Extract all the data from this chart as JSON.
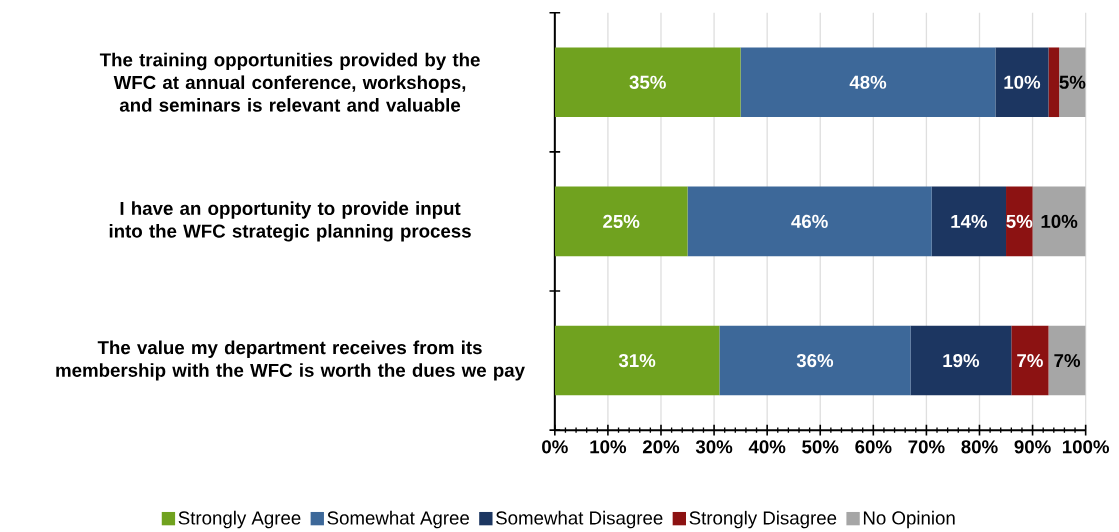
{
  "chart_data": {
    "type": "bar",
    "orientation": "horizontal",
    "stacked": true,
    "categories": [
      "The training opportunities provided by the WFC at annual conference, workshops, and seminars is relevant and valuable",
      "I have an opportunity to provide input into the WFC strategic planning process",
      "The value my department receives from its membership with the WFC is worth the dues we pay"
    ],
    "series": [
      {
        "name": "Strongly Agree",
        "color": "#70a21f",
        "values": [
          35,
          25,
          31
        ],
        "value_labels": [
          "35%",
          "25%",
          "31%"
        ]
      },
      {
        "name": "Somewhat Agree",
        "color": "#3d6899",
        "values": [
          48,
          46,
          36
        ],
        "value_labels": [
          "48%",
          "46%",
          "36%"
        ]
      },
      {
        "name": "Somewhat Disagree",
        "color": "#1c3661",
        "values": [
          10,
          14,
          19
        ],
        "value_labels": [
          "10%",
          "14%",
          "19%"
        ]
      },
      {
        "name": "Strongly Disagree",
        "color": "#8c1212",
        "values": [
          2,
          5,
          7
        ],
        "value_labels": [
          null,
          "5%",
          "7%"
        ]
      },
      {
        "name": "No Opinion",
        "color": "#a6a6a6",
        "values": [
          5,
          10,
          7
        ],
        "value_labels": [
          "5%",
          "10%",
          "7%"
        ]
      }
    ],
    "xlim": [
      0,
      100
    ],
    "xticks": [
      {
        "value": 0,
        "label": "0%"
      },
      {
        "value": 10,
        "label": "10%"
      },
      {
        "value": 20,
        "label": "20%"
      },
      {
        "value": 30,
        "label": "30%"
      },
      {
        "value": 40,
        "label": "40%"
      },
      {
        "value": 50,
        "label": "50%"
      },
      {
        "value": 60,
        "label": "60%"
      },
      {
        "value": 70,
        "label": "70%"
      },
      {
        "value": 80,
        "label": "80%"
      },
      {
        "value": 90,
        "label": "90%"
      },
      {
        "value": 100,
        "label": "100%"
      }
    ],
    "grid": "x",
    "legend": "bottom"
  }
}
